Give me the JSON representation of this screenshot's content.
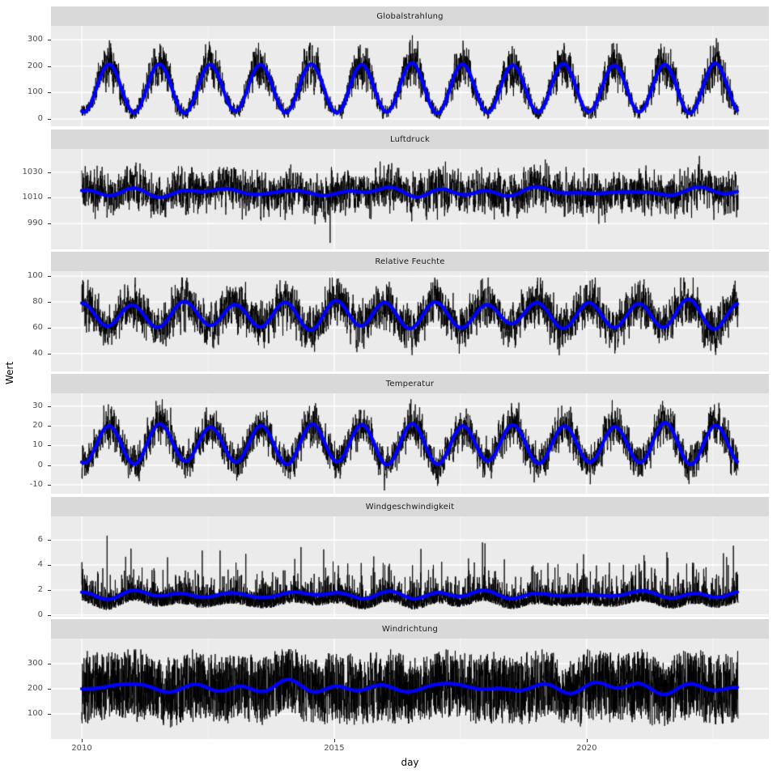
{
  "chart_data": {
    "type": "line",
    "title": "",
    "xlabel": "day",
    "ylabel": "Wert",
    "legend_position": "none",
    "grid": true,
    "x_ticks": [
      "2010",
      "2015",
      "2020"
    ],
    "x_tick_values": [
      2010,
      2015,
      2020
    ],
    "x_minor_tick_values": [
      2012.5,
      2017.5,
      2022.5
    ],
    "x_domain": [
      2009.39,
      2023.61
    ],
    "x_data_range": [
      2010.0,
      2023.0
    ],
    "colors": {
      "raw_series": "#000000",
      "smooth_series": "#0000FF",
      "panel_background": "#EBEBEB",
      "strip_background": "#D9D9D9",
      "grid_major": "#FFFFFF",
      "grid_minor": "rgba(255,255,255,0.55)",
      "tick_label": "#4D4D4D",
      "axis_title": "#000000",
      "tick_mark": "#333333"
    },
    "facets": [
      {
        "label": "Globalstrahlung",
        "y_ticks": [
          0,
          100,
          200,
          300
        ],
        "y_domain": [
          -28,
          352
        ],
        "smooth": {
          "mean": 116,
          "amplitude": 91,
          "peak_frac": 0.54,
          "wobble": 6
        },
        "noise": {
          "base": 26,
          "seasonal": 70,
          "ar": 0.45,
          "clip": [
            0,
            342
          ],
          "kind": "triangular"
        }
      },
      {
        "label": "Luftdruck",
        "y_ticks": [
          990,
          1010,
          1030
        ],
        "y_domain": [
          970,
          1048
        ],
        "smooth": {
          "mean": 1014.5,
          "amplitude": 1.5,
          "peak_frac": 0.08,
          "wobble": 3.5
        },
        "noise": {
          "base": 16,
          "seasonal": 3,
          "ar": 0.5,
          "clip": [
            974,
            1045
          ],
          "kind": "triangular"
        },
        "outlier": {
          "t": 2014.92,
          "value": 975
        }
      },
      {
        "label": "Relative Feuchte",
        "y_ticks": [
          40,
          60,
          80,
          100
        ],
        "y_domain": [
          26,
          104
        ],
        "smooth": {
          "mean": 70,
          "amplitude": 9.5,
          "peak_frac": 0.02,
          "wobble": 3
        },
        "noise": {
          "base": 17,
          "seasonal": 3,
          "ar": 0.45,
          "clip": [
            31,
            99
          ],
          "kind": "triangular"
        }
      },
      {
        "label": "Temperatur",
        "y_ticks": [
          -10,
          0,
          10,
          20,
          30
        ],
        "y_domain": [
          -14.5,
          36.5
        ],
        "smooth": {
          "mean": 10.8,
          "amplitude": 9.6,
          "peak_frac": 0.55,
          "wobble": 1.5
        },
        "noise": {
          "base": 9.5,
          "seasonal": 1.5,
          "ar": 0.45,
          "clip": [
            -13.5,
            33.5
          ],
          "kind": "triangular"
        }
      },
      {
        "label": "Windgeschwindigkeit",
        "y_ticks": [
          0,
          2,
          4,
          6
        ],
        "y_domain": [
          -0.15,
          7.9
        ],
        "smooth": {
          "mean": 1.62,
          "amplitude": 0.18,
          "peak_frac": 0.05,
          "wobble": 0.25
        },
        "noise": {
          "base": 0.62,
          "seasonal": 0.1,
          "ar": 0.25,
          "clip": [
            0.12,
            7.05
          ],
          "kind": "exponential"
        }
      },
      {
        "label": "Windrichtung",
        "y_ticks": [
          100,
          200,
          300
        ],
        "y_domain": [
          0,
          400
        ],
        "smooth": {
          "mean": 205,
          "amplitude": 10,
          "peak_frac": 0.1,
          "wobble": 22
        },
        "noise": {
          "base": 125,
          "seasonal": 10,
          "ar": 0.15,
          "clip": [
            28,
            357
          ],
          "kind": "uniform"
        }
      }
    ]
  }
}
